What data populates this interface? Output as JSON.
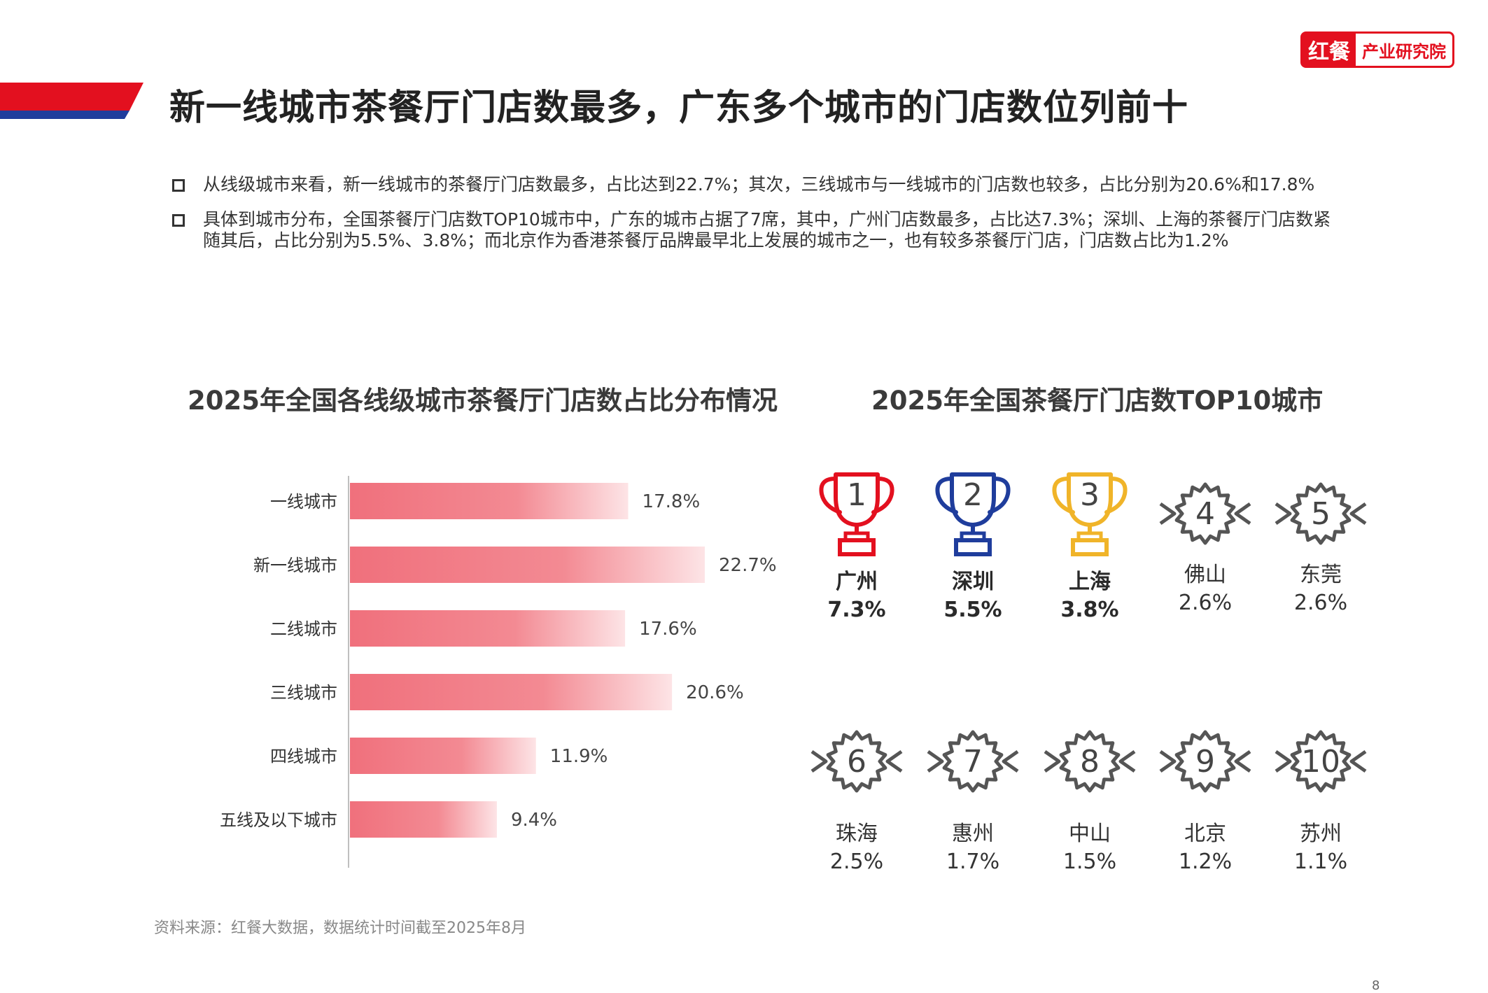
{
  "page": {
    "title": "新一线城市茶餐厅门店数最多，广东多个城市的门店数位列前十",
    "brand": {
      "mark": "红餐",
      "name": "产业研究院"
    },
    "bullets": [
      "从线级城市来看，新一线城市的茶餐厅门店数最多，占比达到22.7%；其次，三线城市与一线城市的门店数也较多，占比分别为20.6%和17.8%",
      "具体到城市分布，全国茶餐厅门店数TOP10城市中，广东的城市占据了7席，其中，广州门店数最多，占比达7.3%；深圳、上海的茶餐厅门店数紧随其后，占比分别为5.5%、3.8%；而北京作为香港茶餐厅品牌最早北上发展的城市之一，也有较多茶餐厅门店，门店数占比为1.2%"
    ],
    "source": "资料来源：红餐大数据，数据统计时间截至2025年8月",
    "page_number": "8",
    "colors": {
      "accent_red": "#e3101f",
      "accent_blue": "#1f3d9c",
      "bar": "#f0707c",
      "gold": "#f0b429",
      "gray_badge": "#555555"
    }
  },
  "chart_data": [
    {
      "type": "bar",
      "orientation": "horizontal",
      "title": "2025年全国各线级城市茶餐厅门店数占比分布情况",
      "categories": [
        "一线城市",
        "新一线城市",
        "二线城市",
        "三线城市",
        "四线城市",
        "五线及以下城市"
      ],
      "values": [
        17.8,
        22.7,
        17.6,
        20.6,
        11.9,
        9.4
      ],
      "value_labels": [
        "17.8%",
        "22.7%",
        "17.6%",
        "20.6%",
        "11.9%",
        "9.4%"
      ],
      "unit": "%",
      "xlim": [
        0,
        25
      ],
      "grid": false
    },
    {
      "type": "table",
      "title": "2025年全国茶餐厅门店数TOP10城市",
      "ranks": [
        "1",
        "2",
        "3",
        "4",
        "5",
        "6",
        "7",
        "8",
        "9",
        "10"
      ],
      "cities": [
        "广州",
        "深圳",
        "上海",
        "佛山",
        "东莞",
        "珠海",
        "惠州",
        "中山",
        "北京",
        "苏州"
      ],
      "values": [
        7.3,
        5.5,
        3.8,
        2.6,
        2.6,
        2.5,
        1.7,
        1.5,
        1.2,
        1.1
      ],
      "value_labels": [
        "7.3%",
        "5.5%",
        "3.8%",
        "2.6%",
        "2.6%",
        "2.5%",
        "1.7%",
        "1.5%",
        "1.2%",
        "1.1%"
      ],
      "icons": [
        "trophy-red",
        "trophy-blue",
        "trophy-gold",
        "badge",
        "badge",
        "badge",
        "badge",
        "badge",
        "badge",
        "badge"
      ]
    }
  ]
}
